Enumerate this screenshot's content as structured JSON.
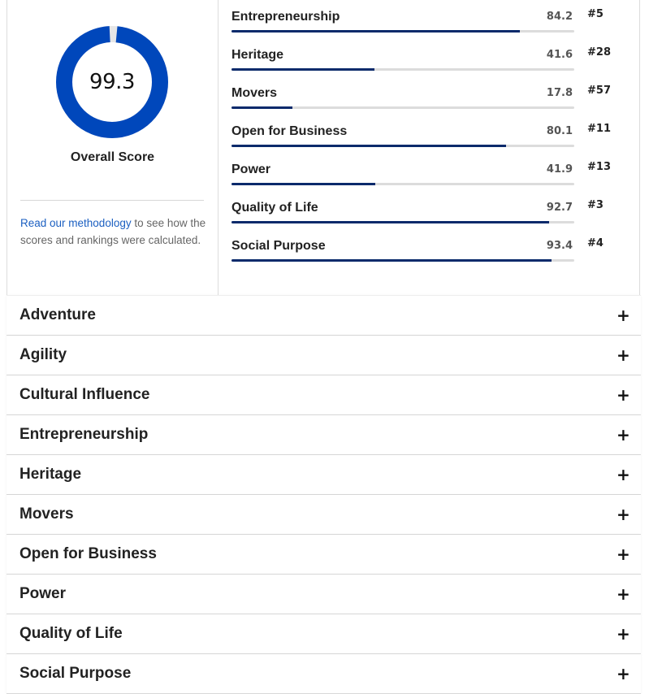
{
  "overall": {
    "score": "99.3",
    "score_fraction": 0.993,
    "label": "Overall Score",
    "ring_color": "#0047bb",
    "track_color": "#e6e6e6"
  },
  "methodology": {
    "link_text": "Read our methodology",
    "rest_text": " to see how the scores and rankings were calculated."
  },
  "metrics": [
    {
      "name": "Entrepreneurship",
      "score": "84.2",
      "rank": "#5",
      "value": 84.2
    },
    {
      "name": "Heritage",
      "score": "41.6",
      "rank": "#28",
      "value": 41.6
    },
    {
      "name": "Movers",
      "score": "17.8",
      "rank": "#57",
      "value": 17.8
    },
    {
      "name": "Open for Business",
      "score": "80.1",
      "rank": "#11",
      "value": 80.1
    },
    {
      "name": "Power",
      "score": "41.9",
      "rank": "#13",
      "value": 41.9
    },
    {
      "name": "Quality of Life",
      "score": "92.7",
      "rank": "#3",
      "value": 92.7
    },
    {
      "name": "Social Purpose",
      "score": "93.4",
      "rank": "#4",
      "value": 93.4
    }
  ],
  "bar_color": "#0a2a6b",
  "accordion": {
    "expand_symbol": "+",
    "items": [
      {
        "label": "Adventure"
      },
      {
        "label": "Agility"
      },
      {
        "label": "Cultural Influence"
      },
      {
        "label": "Entrepreneurship"
      },
      {
        "label": "Heritage"
      },
      {
        "label": "Movers"
      },
      {
        "label": "Open for Business"
      },
      {
        "label": "Power"
      },
      {
        "label": "Quality of Life"
      },
      {
        "label": "Social Purpose"
      }
    ]
  }
}
